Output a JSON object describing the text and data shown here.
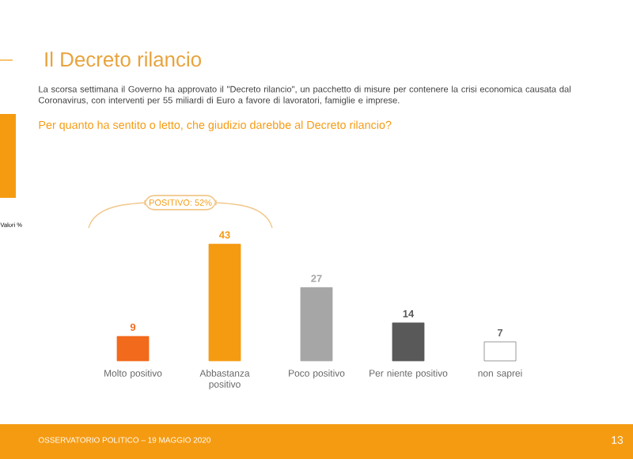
{
  "chart_data": {
    "type": "bar",
    "title": "Il Decreto rilancio",
    "subtitle": "La scorsa settimana il Governo ha approvato il \"Decreto rilancio\", un pacchetto di misure per contenere la crisi economica causata dal Coronavirus, con interventi per 55 miliardi di Euro a favore di lavoratori, famiglie e imprese.",
    "categories": [
      "Molto positivo",
      "Abbastanza positivo",
      "Poco positivo",
      "Per niente positivo",
      "non saprei"
    ],
    "values": [
      9,
      43,
      27,
      14,
      7
    ],
    "colors": [
      "#f26a1b",
      "#f59b12",
      "#a6a6a6",
      "#595959",
      "#ffffff"
    ],
    "data_labels": true,
    "annotations": [
      "Per quanto ha sentito o letto, che giudizio darebbe al Decreto rilancio?",
      "POSITIVO: 52%",
      "Valori %",
      "OSSERVATORIO POLITICO – 19 MAGGIO 2020",
      "13"
    ]
  }
}
